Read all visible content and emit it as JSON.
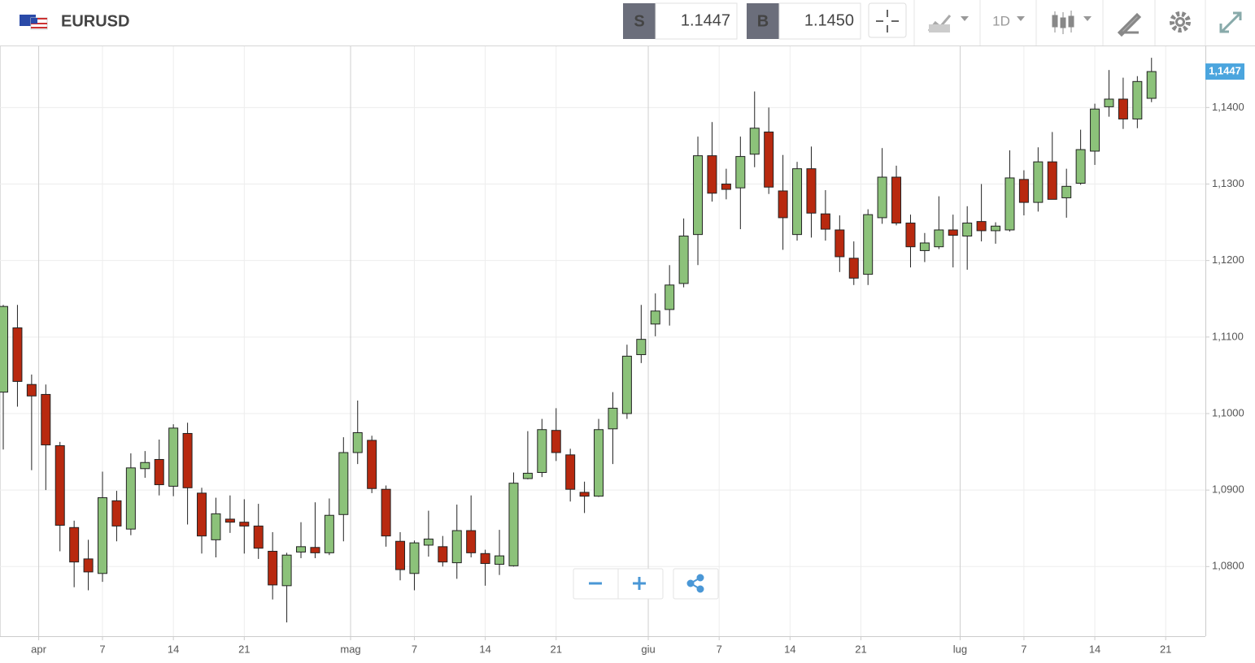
{
  "header": {
    "symbol": "EURUSD",
    "sell_label": "S",
    "sell_price": "1.1447",
    "buy_label": "B",
    "buy_price": "1.1450",
    "timeframe": "1D"
  },
  "chart_data": {
    "type": "candlestick",
    "x": [
      0,
      1,
      2,
      3,
      4,
      5,
      6,
      7,
      8,
      9,
      10,
      11,
      12,
      13,
      14,
      15,
      16,
      17,
      18,
      19,
      20,
      21,
      22,
      23,
      24,
      25,
      26,
      27,
      28,
      29,
      30,
      31,
      32,
      33,
      34,
      35,
      36,
      37,
      38,
      39,
      40,
      41,
      42,
      43,
      44,
      45,
      46,
      47,
      48,
      49,
      50,
      51,
      52,
      53,
      54,
      55,
      56,
      57,
      58,
      59,
      60,
      61,
      62,
      63,
      64,
      65,
      66,
      67,
      68,
      69,
      70,
      71,
      72,
      73,
      74,
      75,
      76,
      77,
      78,
      79,
      80,
      81
    ],
    "open": [
      1.1028,
      1.1112,
      1.1038,
      1.1025,
      1.0958,
      1.0851,
      1.081,
      1.0791,
      1.0886,
      1.0849,
      1.0928,
      1.094,
      1.0905,
      1.0974,
      1.0896,
      1.0835,
      1.0862,
      1.0858,
      1.0853,
      1.082,
      1.0775,
      1.0819,
      1.0825,
      1.0818,
      1.0868,
      1.0949,
      1.0965,
      1.0901,
      1.0833,
      1.0791,
      1.0828,
      1.0826,
      1.0805,
      1.0847,
      1.0817,
      1.0803,
      1.0801,
      1.0915,
      1.0923,
      1.0978,
      1.0946,
      1.0897,
      1.0892,
      1.098,
      1.1,
      1.1077,
      1.1117,
      1.1136,
      1.117,
      1.1234,
      1.1337,
      1.13,
      1.1295,
      1.1339,
      1.1368,
      1.1291,
      1.1234,
      1.132,
      1.1261,
      1.124,
      1.1203,
      1.1182,
      1.1256,
      1.1309,
      1.1249,
      1.1213,
      1.1218,
      1.124,
      1.1232,
      1.1251,
      1.1239,
      1.124,
      1.1306,
      1.1276,
      1.1329,
      1.1282,
      1.1301,
      1.1343,
      1.1401,
      1.1411,
      1.1385,
      1.1412
    ],
    "high": [
      1.1142,
      1.1142,
      1.1051,
      1.1038,
      1.0963,
      1.086,
      1.0835,
      1.0924,
      1.0899,
      1.0948,
      1.0951,
      1.0966,
      1.0986,
      1.0988,
      1.0903,
      1.089,
      1.0893,
      1.0888,
      1.0882,
      1.0845,
      1.0818,
      1.0858,
      1.0884,
      1.0889,
      1.0969,
      1.1017,
      1.0971,
      1.0906,
      1.0845,
      1.0834,
      1.0873,
      1.084,
      1.0881,
      1.0893,
      1.0822,
      1.0848,
      1.0923,
      1.0977,
      1.0993,
      1.1007,
      1.0954,
      1.0911,
      1.0993,
      1.1028,
      1.109,
      1.1142,
      1.1157,
      1.1194,
      1.1255,
      1.1362,
      1.1381,
      1.132,
      1.1362,
      1.1421,
      1.14,
      1.1338,
      1.1329,
      1.1349,
      1.1292,
      1.1259,
      1.1225,
      1.1267,
      1.1347,
      1.1324,
      1.126,
      1.1236,
      1.1284,
      1.126,
      1.1271,
      1.13,
      1.125,
      1.1344,
      1.1318,
      1.1348,
      1.1368,
      1.132,
      1.1371,
      1.1405,
      1.1449,
      1.1439,
      1.1441,
      1.1465
    ],
    "low": [
      1.0953,
      1.1009,
      1.0926,
      1.09,
      1.082,
      1.0773,
      1.0769,
      1.078,
      1.0833,
      1.0841,
      1.0916,
      1.0893,
      1.0892,
      1.0855,
      1.0817,
      1.0812,
      1.0844,
      1.0817,
      1.081,
      1.0757,
      1.0727,
      1.0811,
      1.0811,
      1.0815,
      1.0833,
      1.0934,
      1.0896,
      1.0826,
      1.0782,
      1.0769,
      1.0813,
      1.08,
      1.0784,
      1.0812,
      1.0775,
      1.0789,
      1.08,
      1.0914,
      1.0917,
      1.0938,
      1.0885,
      1.087,
      1.0891,
      1.0934,
      1.0993,
      1.1066,
      1.1101,
      1.1115,
      1.1165,
      1.1194,
      1.1277,
      1.128,
      1.1241,
      1.1322,
      1.1287,
      1.1214,
      1.1226,
      1.123,
      1.1226,
      1.1185,
      1.1168,
      1.1168,
      1.1248,
      1.1246,
      1.1191,
      1.1198,
      1.1215,
      1.1191,
      1.1188,
      1.1225,
      1.1222,
      1.1238,
      1.1259,
      1.1264,
      1.128,
      1.1256,
      1.1299,
      1.1325,
      1.1388,
      1.1372,
      1.1373,
      1.1407
    ],
    "close": [
      1.114,
      1.1042,
      1.1023,
      1.0959,
      1.0854,
      1.0806,
      1.0793,
      1.089,
      1.0853,
      1.0929,
      1.0936,
      1.0907,
      1.0981,
      1.0903,
      1.084,
      1.0869,
      1.0858,
      1.0853,
      1.0824,
      1.0776,
      1.0815,
      1.0826,
      1.0818,
      1.0867,
      1.0949,
      1.0975,
      1.0902,
      1.084,
      1.0796,
      1.0831,
      1.0836,
      1.0806,
      1.0847,
      1.0818,
      1.0804,
      1.0814,
      1.0909,
      1.0922,
      1.0979,
      1.0949,
      1.0901,
      1.0892,
      1.0979,
      1.1007,
      1.1075,
      1.1097,
      1.1134,
      1.1168,
      1.1232,
      1.1337,
      1.1288,
      1.1293,
      1.1336,
      1.1373,
      1.1296,
      1.1256,
      1.132,
      1.1262,
      1.1241,
      1.1205,
      1.1177,
      1.126,
      1.1309,
      1.1249,
      1.1218,
      1.1223,
      1.124,
      1.1233,
      1.1249,
      1.1239,
      1.1245,
      1.1308,
      1.1276,
      1.1329,
      1.128,
      1.1297,
      1.1345,
      1.1398,
      1.1411,
      1.1385,
      1.1434,
      1.1447
    ],
    "up_color": "#8cc27a",
    "down_color": "#b8290f",
    "xlim": [
      -0.23,
      84.8
    ],
    "xticks": [
      {
        "value": 2.5,
        "label": "apr"
      },
      {
        "value": 7,
        "label": "7"
      },
      {
        "value": 12,
        "label": "14"
      },
      {
        "value": 17,
        "label": "21"
      },
      {
        "value": 24.5,
        "label": "mag"
      },
      {
        "value": 29,
        "label": "7"
      },
      {
        "value": 34,
        "label": "14"
      },
      {
        "value": 39,
        "label": "21"
      },
      {
        "value": 45.5,
        "label": "giu"
      },
      {
        "value": 50.5,
        "label": "7"
      },
      {
        "value": 55.5,
        "label": "14"
      },
      {
        "value": 60.5,
        "label": "21"
      },
      {
        "value": 67.5,
        "label": "lug"
      },
      {
        "value": 72,
        "label": "7"
      },
      {
        "value": 77,
        "label": "14"
      },
      {
        "value": 82,
        "label": "21"
      }
    ],
    "ylim": [
      1.0709,
      1.148
    ],
    "yticks": [
      {
        "value": 1.08,
        "label": "1,0800"
      },
      {
        "value": 1.09,
        "label": "1,0900"
      },
      {
        "value": 1.1,
        "label": "1,1000"
      },
      {
        "value": 1.11,
        "label": "1,1100"
      },
      {
        "value": 1.12,
        "label": "1,1200"
      },
      {
        "value": 1.13,
        "label": "1,1300"
      },
      {
        "value": 1.14,
        "label": "1,1400"
      }
    ],
    "last_price": {
      "value": 1.1447,
      "label": "1,1447"
    },
    "grid": true
  }
}
